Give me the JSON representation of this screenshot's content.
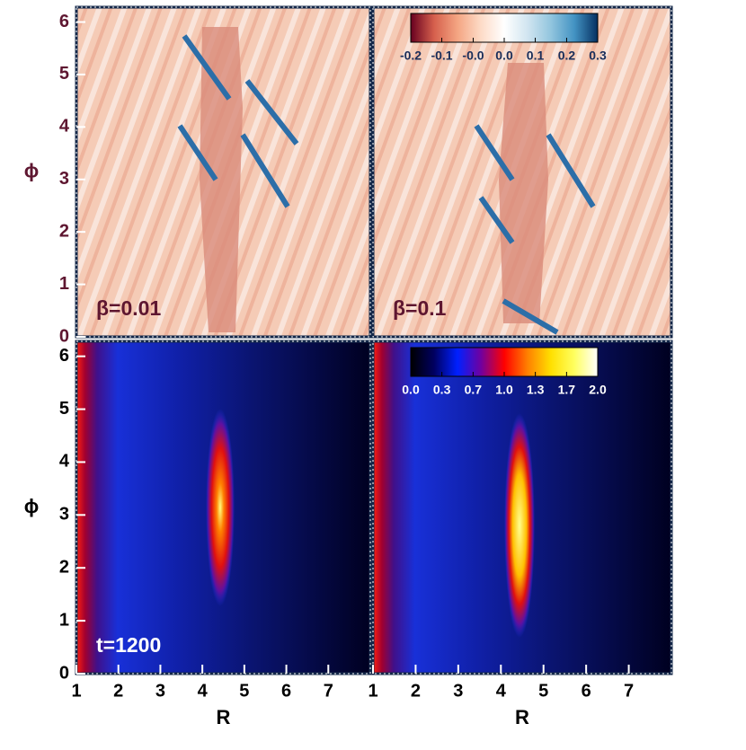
{
  "chart_data": [
    {
      "type": "heatmap",
      "annotation": "β=0.01",
      "ylabel": "ϕ",
      "xlim": [
        1,
        8
      ],
      "ylim": [
        0,
        6.283
      ],
      "yticks": [
        0,
        1,
        2,
        3,
        4,
        5,
        6
      ]
    },
    {
      "type": "heatmap",
      "annotation": "β=0.1",
      "xlim": [
        1,
        8
      ],
      "ylim": [
        0,
        6.283
      ],
      "colorbar": {
        "lim": [
          -0.2,
          0.3
        ],
        "ticks": [
          -0.2,
          {
            "value": -0.117,
            "label": "-0.1"
          },
          {
            "value": -0.033,
            "label": "-0.0"
          },
          {
            "value": 0.05,
            "label": "0.0"
          },
          {
            "value": 0.133,
            "label": "0.1"
          },
          {
            "value": 0.217,
            "label": "0.2"
          },
          0.3
        ],
        "colormap": [
          "#67001f",
          "#d6604d",
          "#f4a582",
          "#fddbc7",
          "#ffffff",
          "#d1e5f0",
          "#92c5de",
          "#4393c3",
          "#053061"
        ]
      }
    },
    {
      "type": "heatmap",
      "annotation": "t=1200",
      "ylabel": "ϕ",
      "xlabel": "R",
      "xlim": [
        1,
        8
      ],
      "ylim": [
        0,
        6.283
      ],
      "xticks": [
        1,
        2,
        3,
        4,
        5,
        6,
        7
      ],
      "yticks": [
        0,
        1,
        2,
        3,
        4,
        5,
        6
      ]
    },
    {
      "type": "heatmap",
      "xlabel": "R",
      "xlim": [
        1,
        8
      ],
      "ylim": [
        0,
        6.283
      ],
      "xticks": [
        1,
        2,
        3,
        4,
        5,
        6,
        7
      ],
      "colorbar": {
        "lim": [
          0,
          2
        ],
        "ticks": [
          {
            "value": 0,
            "label": "0.0"
          },
          {
            "value": 0.333,
            "label": "0.3"
          },
          {
            "value": 0.667,
            "label": "0.7"
          },
          {
            "value": 1,
            "label": "1.0"
          },
          {
            "value": 1.333,
            "label": "1.3"
          },
          {
            "value": 1.667,
            "label": "1.7"
          },
          {
            "value": 2,
            "label": "2.0"
          }
        ],
        "colormap": [
          "#000000",
          "#000060",
          "#0020ff",
          "#7000a0",
          "#ff0000",
          "#ff8000",
          "#ffe000",
          "#ffff60",
          "#ffffff"
        ]
      }
    }
  ]
}
